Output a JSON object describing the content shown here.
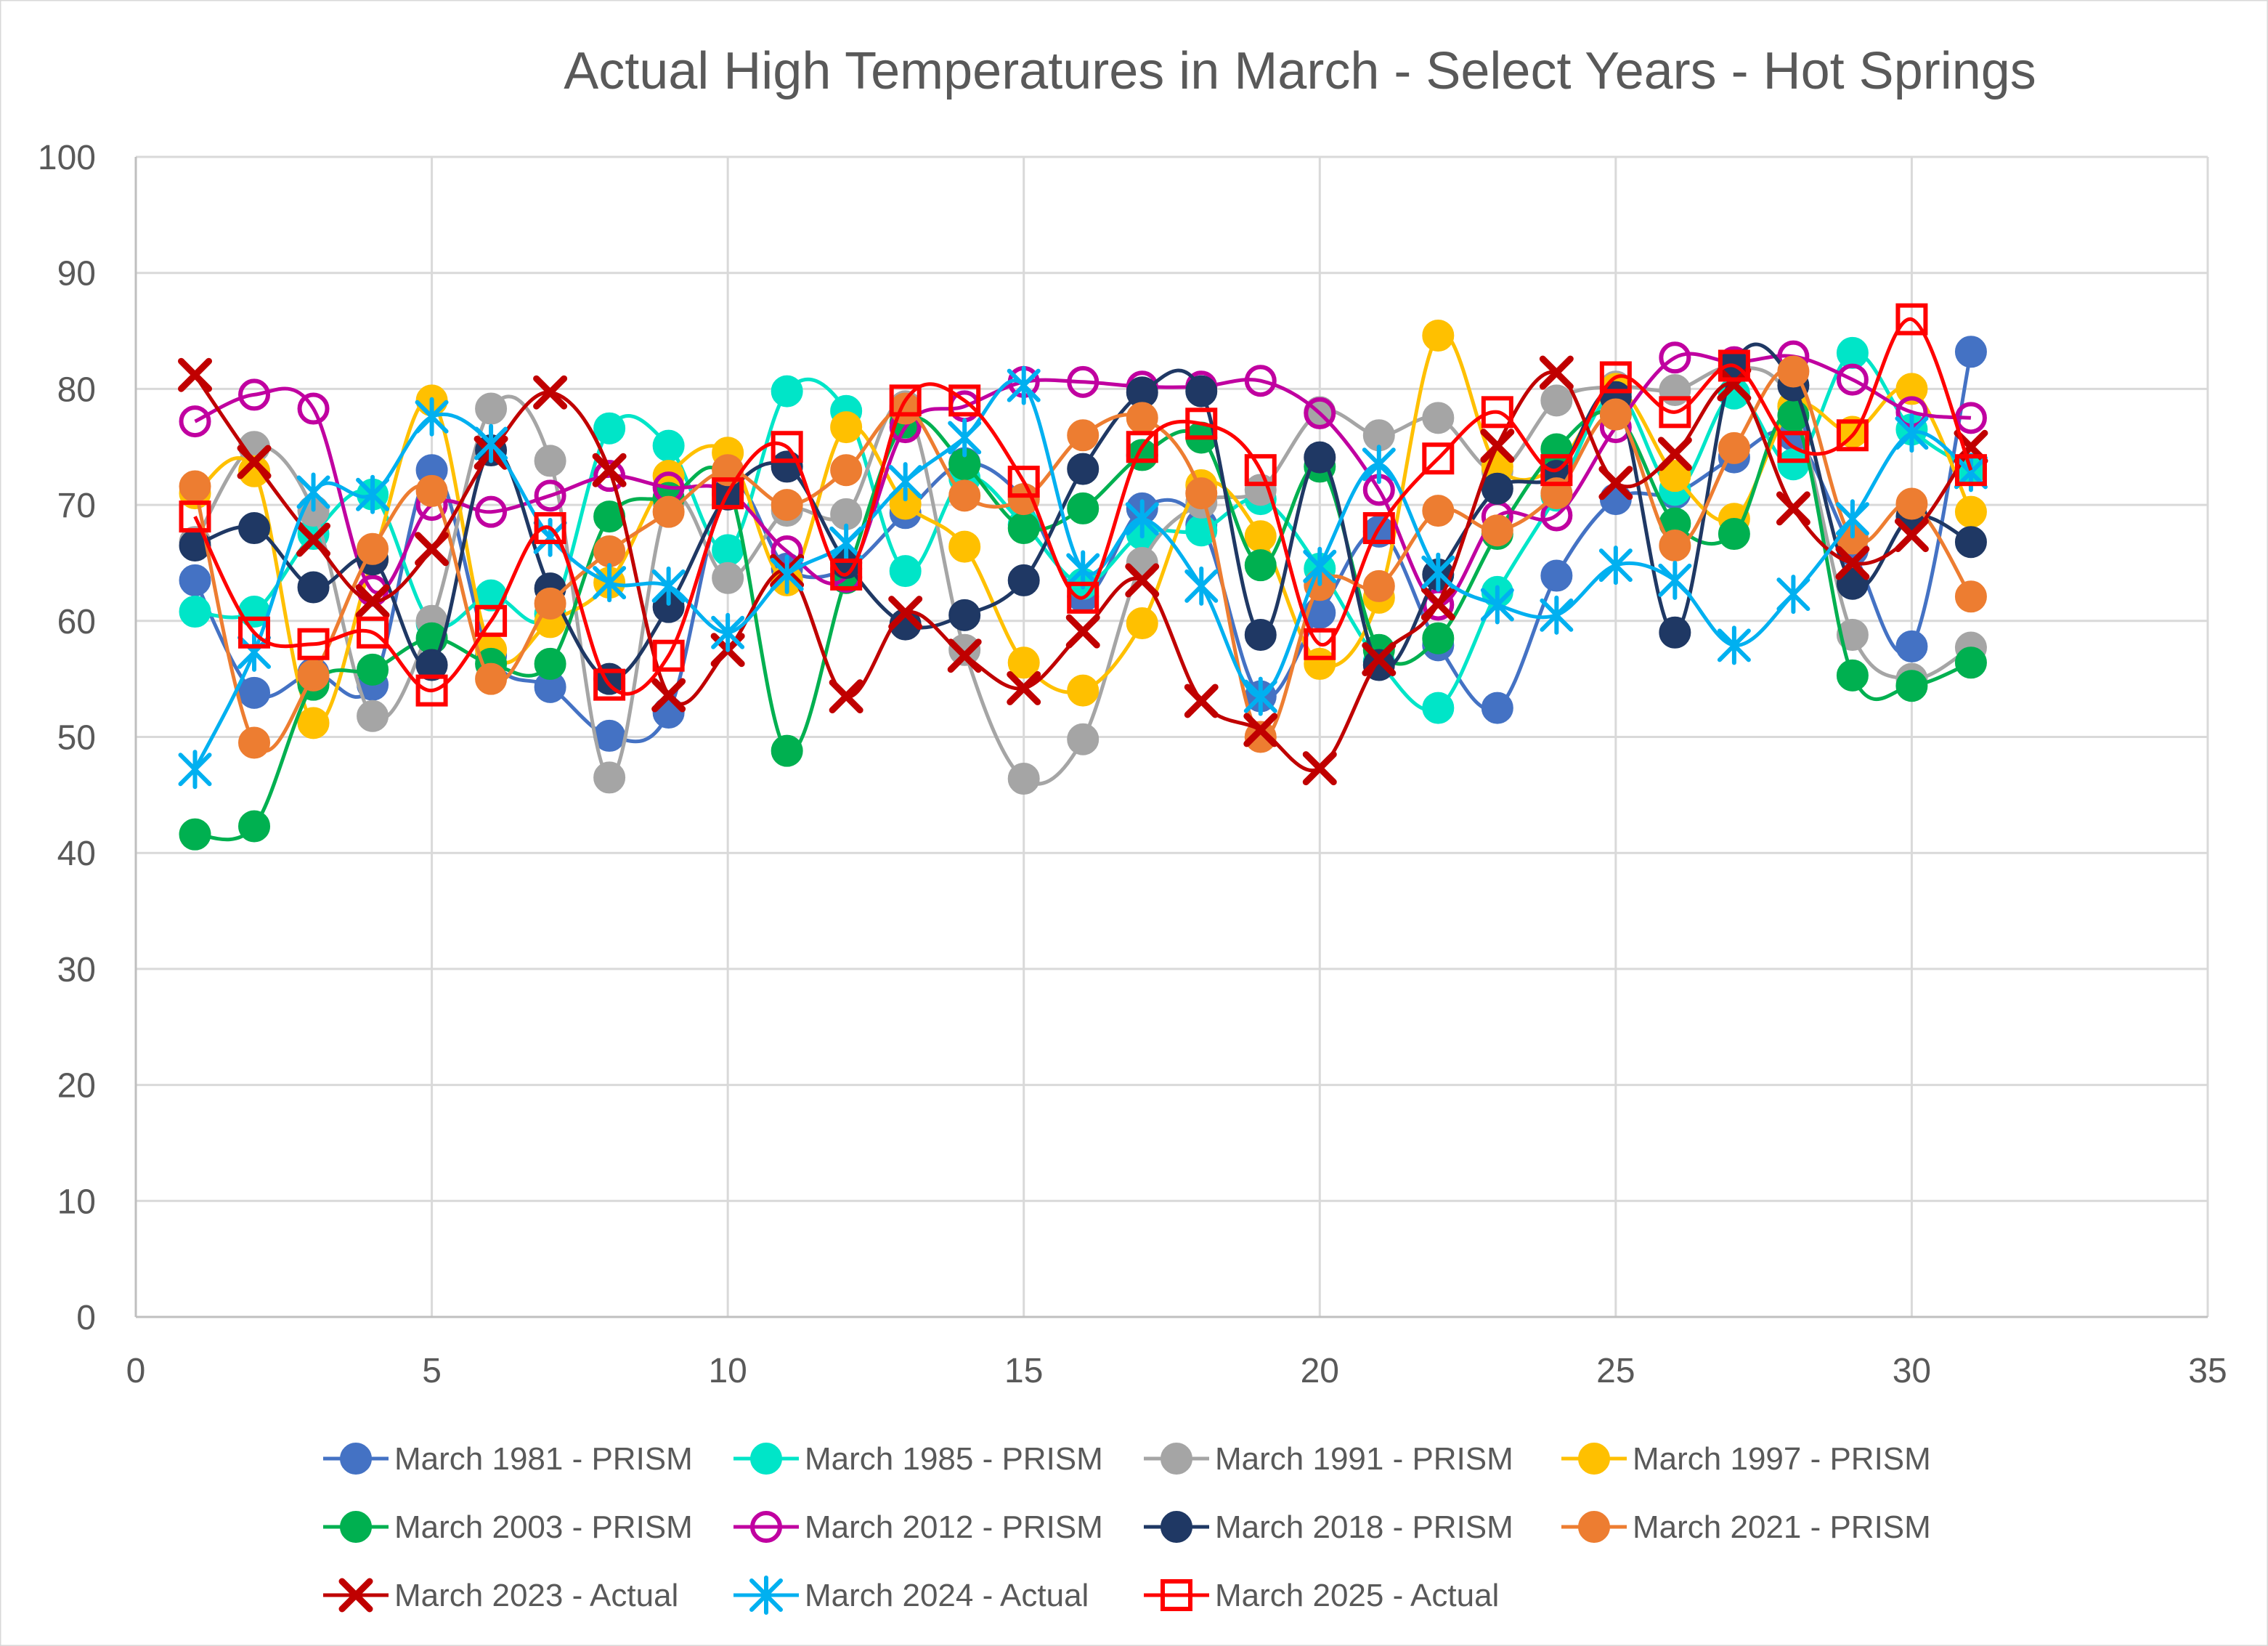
{
  "chart_data": {
    "type": "scatter",
    "title": "Actual High Temperatures in March - Select Years - Hot Springs",
    "xlabel": "",
    "ylabel": "",
    "xlim": [
      0,
      35
    ],
    "ylim": [
      0,
      100
    ],
    "x_ticks": [
      0,
      5,
      10,
      15,
      20,
      25,
      30,
      35
    ],
    "y_ticks": [
      0,
      10,
      20,
      30,
      40,
      50,
      60,
      70,
      80,
      90,
      100
    ],
    "grid": true,
    "smoothed_lines": true,
    "legend_position": "bottom",
    "x": [
      1,
      2,
      3,
      4,
      5,
      6,
      7,
      8,
      9,
      10,
      11,
      12,
      13,
      14,
      15,
      16,
      17,
      18,
      19,
      20,
      21,
      22,
      23,
      24,
      25,
      26,
      27,
      28,
      29,
      30,
      31
    ],
    "series": [
      {
        "name": "March 1981 - PRISM",
        "color": "#4472C4",
        "marker": "circle",
        "values": [
          63.5,
          53.8,
          55.5,
          54.5,
          73,
          57,
          54.3,
          50.1,
          52.1,
          71.5,
          64.5,
          64.5,
          69.3,
          73.6,
          70.5,
          62.1,
          69.7,
          68.3,
          53.5,
          60.7,
          67.7,
          57.9,
          52.5,
          63.9,
          70.5,
          71,
          74.1,
          76,
          66.1,
          57.8,
          83.2
        ]
      },
      {
        "name": "March 1985 - PRISM",
        "color": "#00E5C8",
        "marker": "circle",
        "values": [
          60.8,
          60.8,
          67.5,
          70.9,
          59.8,
          62.2,
          60.6,
          76.6,
          75.1,
          66.1,
          79.8,
          78.1,
          64.3,
          72.3,
          68.3,
          63.2,
          67.5,
          67.8,
          70.5,
          64.5,
          56.5,
          52.5,
          62.5,
          70.8,
          79.6,
          71.3,
          79.6,
          73.5,
          83.1,
          76.5,
          73.1
        ]
      },
      {
        "name": "March 1991 - PRISM",
        "color": "#A5A5A5",
        "marker": "circle",
        "values": [
          66.8,
          75,
          69.5,
          51.8,
          60,
          78.3,
          73.8,
          46.5,
          70.2,
          63.7,
          69.5,
          69.2,
          78.5,
          57.5,
          46.4,
          49.8,
          65,
          70.2,
          71.3,
          78,
          76,
          77.5,
          72.9,
          79,
          80.2,
          79.9,
          81.9,
          78.5,
          58.8,
          55,
          57.7
        ]
      },
      {
        "name": "March 1997 - PRISM",
        "color": "#FFC000",
        "marker": "circle",
        "values": [
          71,
          72.9,
          51.2,
          65.3,
          79,
          57.5,
          59.9,
          63.3,
          72.5,
          74.5,
          63.5,
          76.7,
          70.1,
          66.4,
          56.4,
          54,
          59.8,
          71.7,
          67.3,
          56.3,
          62,
          84.6,
          73.3,
          73.3,
          80,
          72.5,
          68.8,
          78.5,
          76.3,
          80,
          69.4
        ]
      },
      {
        "name": "March 2003 - PRISM",
        "color": "#00B050",
        "marker": "circle",
        "values": [
          41.6,
          42.3,
          54.5,
          55.8,
          58.5,
          56.3,
          56.3,
          69,
          70.6,
          71.8,
          48.8,
          63.7,
          77.1,
          73.5,
          68,
          69.7,
          74.3,
          75.8,
          64.8,
          73.3,
          57.5,
          58.5,
          67.5,
          74.8,
          77.8,
          68.4,
          67.5,
          77.7,
          55.3,
          54.4,
          56.4
        ]
      },
      {
        "name": "March 2012 - PRISM",
        "color": "#C000A0",
        "marker": "open-circle",
        "values": [
          77.2,
          79.5,
          78.3,
          62.6,
          70,
          69.4,
          70.8,
          72.5,
          71.5,
          71.2,
          66,
          63.8,
          76.7,
          78.5,
          80.6,
          80.6,
          80.2,
          80.2,
          80.7,
          77.9,
          71.3,
          61.4,
          69,
          69.1,
          76.7,
          82.7,
          82.3,
          82.8,
          80.8,
          78,
          77.5
        ]
      },
      {
        "name": "March 2018 - PRISM",
        "color": "#1F3864",
        "marker": "circle",
        "values": [
          66.5,
          68,
          62.9,
          65.3,
          56.2,
          74.7,
          62.8,
          55,
          61.2,
          70.9,
          73.3,
          65,
          59.7,
          60.5,
          63.5,
          73.1,
          79.7,
          79.8,
          58.8,
          74.1,
          56.2,
          64,
          71.4,
          72.5,
          79.3,
          59,
          82,
          80.3,
          63.2,
          69,
          66.8
        ]
      },
      {
        "name": "March 2021 - PRISM",
        "color": "#ED7D31",
        "marker": "circle",
        "values": [
          71.6,
          49.5,
          55.3,
          66.2,
          71.2,
          55,
          61.5,
          66,
          69.4,
          73,
          70,
          73,
          78.3,
          70.8,
          70.5,
          76,
          77.5,
          71,
          50,
          63.1,
          63,
          69.5,
          67.8,
          71,
          77.8,
          66.5,
          74.9,
          81.5,
          67.1,
          70.1,
          62.1
        ]
      },
      {
        "name": "March 2023 - Actual",
        "color": "#C00000",
        "marker": "x",
        "values": [
          81.2,
          73.7,
          67,
          61.7,
          66.2,
          74.5,
          79.7,
          73,
          53.6,
          57.5,
          64.3,
          53.5,
          60.7,
          57,
          54.2,
          59.1,
          63.5,
          53.1,
          50.6,
          47.3,
          56.7,
          61.5,
          75.1,
          81.4,
          71.9,
          74.4,
          80.4,
          69.7,
          65,
          67.4,
          75
        ]
      },
      {
        "name": "March 2024 - Actual",
        "color": "#00B0F0",
        "marker": "asterisk",
        "values": [
          47.2,
          57.3,
          71.1,
          70.9,
          77.6,
          75.3,
          67.2,
          63.3,
          63,
          59,
          64,
          66.7,
          72,
          75.8,
          80.3,
          64.4,
          68.8,
          63,
          53.5,
          64.7,
          73.5,
          64.2,
          61.4,
          60.5,
          64.8,
          63.5,
          57.9,
          62.3,
          68.8,
          76.2,
          72.8
        ]
      },
      {
        "name": "March 2025 - Actual",
        "color": "#FF0000",
        "marker": "open-square",
        "values": [
          69,
          59,
          58,
          59,
          54,
          60,
          68,
          54.5,
          57,
          71,
          75,
          64,
          79,
          79,
          72,
          62,
          75,
          77,
          73,
          58,
          68,
          74,
          78,
          73,
          81,
          78,
          82,
          75,
          76,
          86,
          73
        ]
      }
    ]
  }
}
